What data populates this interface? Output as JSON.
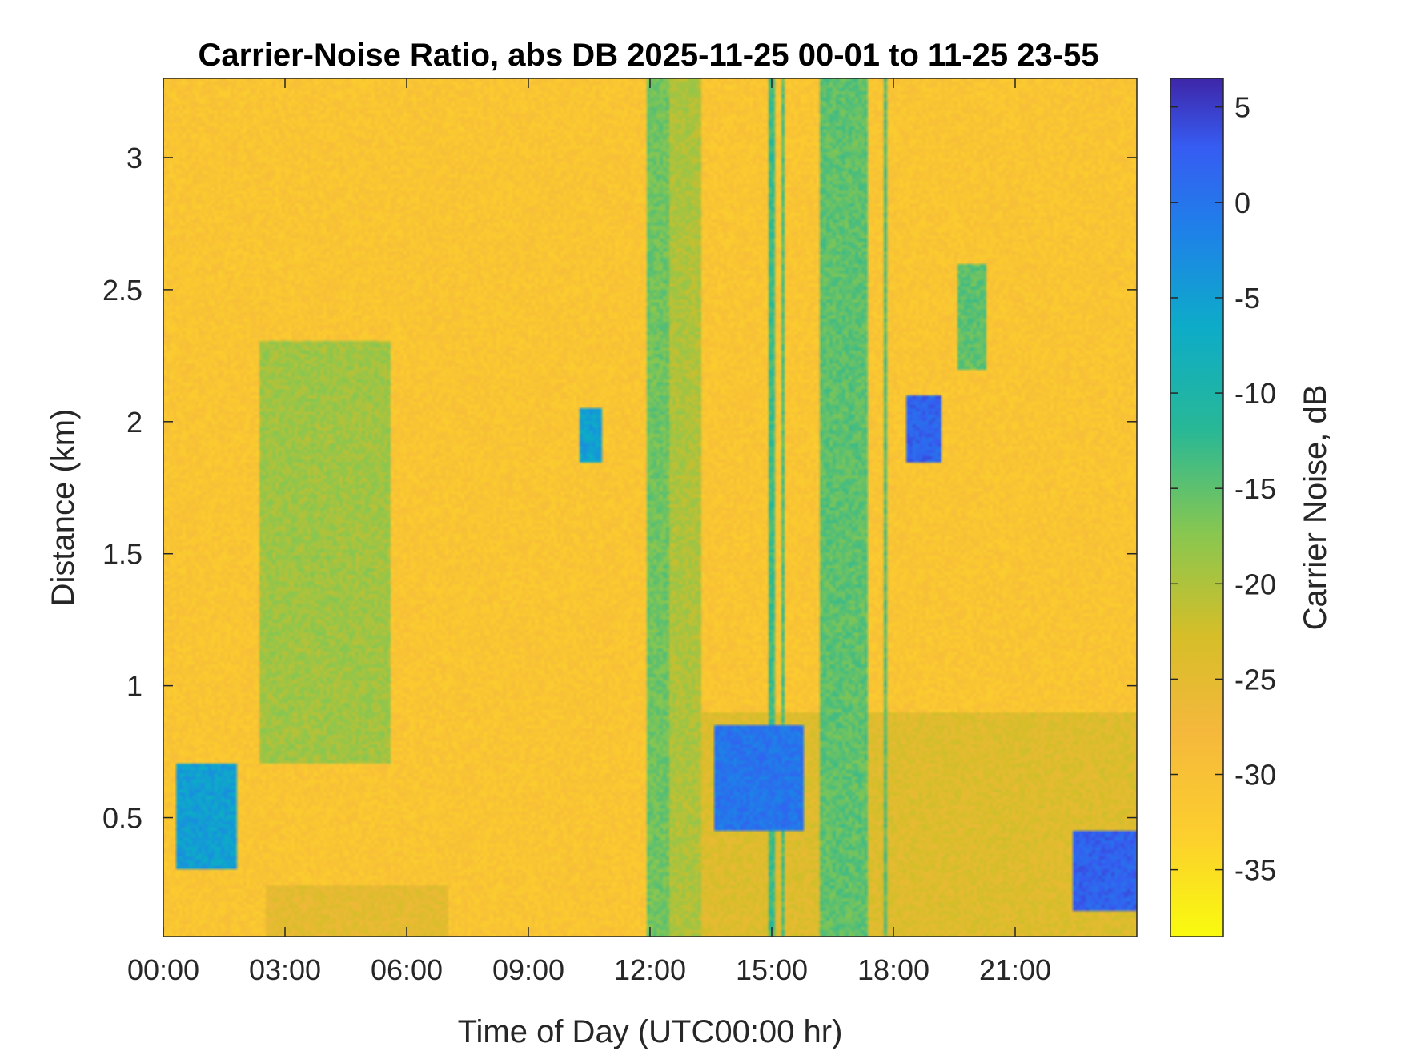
{
  "chart_data": {
    "type": "heatmap",
    "title": "Carrier-Noise Ratio, abs DB 2025-11-25 00-01 to 11-25 23-55",
    "xlabel": "Time of Day (UTC00:00 hr)",
    "ylabel": "Distance (km)",
    "colorbar_label": "Carrier Noise, dB",
    "x_tick_labels": [
      "00:00",
      "03:00",
      "06:00",
      "09:00",
      "12:00",
      "15:00",
      "18:00",
      "21:00"
    ],
    "x_ticks_hours": [
      0,
      3,
      6,
      9,
      12,
      15,
      18,
      21
    ],
    "xlim_hours": [
      0,
      24
    ],
    "y_ticks": [
      0.5,
      1,
      1.5,
      2,
      2.5,
      3
    ],
    "y_tick_labels": [
      "0.5",
      "1",
      "1.5",
      "2",
      "2.5",
      "3"
    ],
    "ylim_km": [
      0.05,
      3.3
    ],
    "colorbar_ticks": [
      5,
      0,
      -5,
      -10,
      -15,
      -20,
      -25,
      -30,
      -35
    ],
    "colorbar_tick_labels": [
      "5",
      "0",
      "-5",
      "-10",
      "-15",
      "-20",
      "-25",
      "-30",
      "-35"
    ],
    "clim_db": [
      -38.5,
      6.5
    ],
    "colormap": "parula-reversed",
    "background_level_db": -31,
    "features": [
      {
        "time_hours": [
          11.9,
          12.5
        ],
        "distance_km": [
          0.05,
          3.3
        ],
        "db": -16
      },
      {
        "time_hours": [
          16.2,
          17.4
        ],
        "distance_km": [
          0.05,
          3.3
        ],
        "db": -15
      },
      {
        "time_hours": [
          14.95,
          15.05
        ],
        "distance_km": [
          0.05,
          3.3
        ],
        "db": -13
      },
      {
        "time_hours": [
          15.25,
          15.32
        ],
        "distance_km": [
          0.05,
          3.3
        ],
        "db": -14
      },
      {
        "time_hours": [
          17.75,
          17.82
        ],
        "distance_km": [
          0.05,
          3.3
        ],
        "db": -14
      },
      {
        "time_hours": [
          12.5,
          13.3
        ],
        "distance_km": [
          0.05,
          3.3
        ],
        "db": -20
      },
      {
        "time_hours": [
          19.6,
          20.3
        ],
        "distance_km": [
          2.2,
          2.6
        ],
        "db": -15
      },
      {
        "time_hours": [
          18.3,
          19.2
        ],
        "distance_km": [
          1.85,
          2.1
        ],
        "db": 2
      },
      {
        "time_hours": [
          13.6,
          15.8
        ],
        "distance_km": [
          0.45,
          0.85
        ],
        "db": 0
      },
      {
        "time_hours": [
          10.3,
          10.8
        ],
        "distance_km": [
          1.85,
          2.05
        ],
        "db": -5
      },
      {
        "time_hours": [
          22.4,
          24.0
        ],
        "distance_km": [
          0.15,
          0.45
        ],
        "db": 2
      },
      {
        "time_hours": [
          0.3,
          1.8
        ],
        "distance_km": [
          0.3,
          0.7
        ],
        "db": -5
      },
      {
        "time_hours": [
          2.5,
          7.0
        ],
        "distance_km": [
          0.05,
          0.25
        ],
        "db": -25
      },
      {
        "time_hours": [
          12.0,
          24.0
        ],
        "distance_km": [
          0.05,
          0.9
        ],
        "db": -24
      },
      {
        "time_hours": [
          2.4,
          5.6
        ],
        "distance_km": [
          0.7,
          2.3
        ],
        "db": -19
      }
    ]
  }
}
